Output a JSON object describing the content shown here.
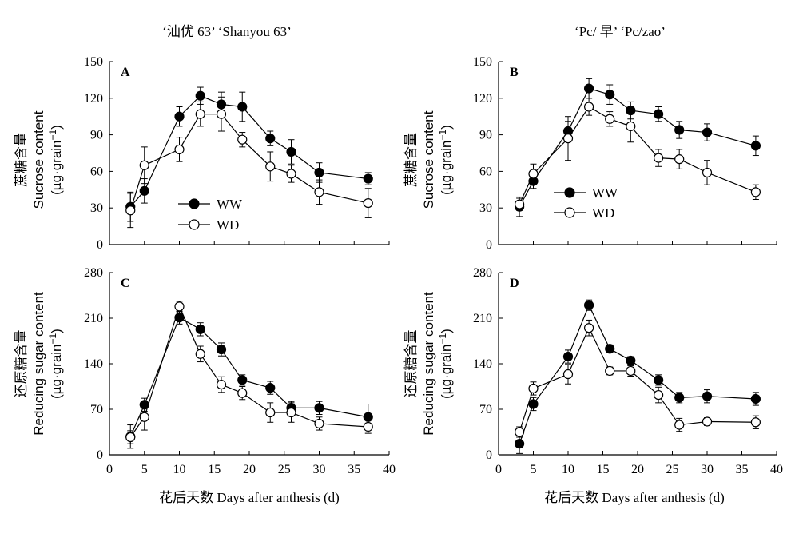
{
  "titles": {
    "left": "‘汕优 63’ ‘Shanyou 63’",
    "right": "‘Pc/ 早’ ‘Pc/zao’"
  },
  "xaxis": {
    "label": "花后天数 Days after anthesis (d)",
    "ticks": [
      "0",
      "5",
      "10",
      "15",
      "20",
      "25",
      "30",
      "35",
      "40"
    ]
  },
  "ylabels": {
    "sucrose": {
      "zh": "蔗糖含量",
      "en": "Sucrose content",
      "unit_base": "(µg·grain",
      "unit_sup": "−1",
      "unit_end": ")"
    },
    "reducing": {
      "zh": "还原糖含量",
      "en": "Reducing sugar content",
      "unit_base": "(µg·grain",
      "unit_sup": "−1",
      "unit_end": ")"
    }
  },
  "colors": {
    "axis": "#000000",
    "ww_fill": "#000000",
    "wd_fill": "#ffffff"
  },
  "chart_data": [
    {
      "panel": "A",
      "type": "line",
      "ylim": [
        0,
        150
      ],
      "yticks": [
        "0",
        "30",
        "60",
        "90",
        "120",
        "150"
      ],
      "x": [
        3,
        5,
        10,
        13,
        16,
        19,
        23,
        26,
        30,
        37
      ],
      "legend": [
        "WW",
        "WD"
      ],
      "series": [
        {
          "name": "WW",
          "values": [
            31,
            44,
            105,
            122,
            115,
            113,
            87,
            76,
            59,
            54
          ],
          "err": [
            12,
            10,
            8,
            7,
            10,
            12,
            6,
            10,
            8,
            5
          ]
        },
        {
          "name": "WD",
          "values": [
            28,
            65,
            78,
            107,
            107,
            86,
            64,
            58,
            43,
            34
          ],
          "err": [
            14,
            15,
            10,
            10,
            14,
            6,
            12,
            7,
            10,
            12
          ]
        }
      ]
    },
    {
      "panel": "B",
      "type": "line",
      "ylim": [
        0,
        150
      ],
      "yticks": [
        "0",
        "30",
        "60",
        "90",
        "120",
        "150"
      ],
      "x": [
        3,
        5,
        10,
        13,
        16,
        19,
        23,
        26,
        30,
        37
      ],
      "legend": [
        "WW",
        "WD"
      ],
      "series": [
        {
          "name": "WW",
          "values": [
            31,
            52,
            93,
            128,
            123,
            110,
            107,
            94,
            92,
            81
          ],
          "err": [
            8,
            6,
            8,
            8,
            8,
            7,
            6,
            7,
            7,
            8
          ]
        },
        {
          "name": "WD",
          "values": [
            33,
            58,
            87,
            113,
            103,
            97,
            71,
            70,
            59,
            43
          ],
          "err": [
            5,
            8,
            18,
            7,
            6,
            13,
            7,
            8,
            10,
            6
          ]
        }
      ]
    },
    {
      "panel": "C",
      "type": "line",
      "ylim": [
        0,
        280
      ],
      "yticks": [
        "0",
        "70",
        "140",
        "210",
        "280"
      ],
      "x": [
        3,
        5,
        10,
        13,
        16,
        19,
        23,
        26,
        30,
        37
      ],
      "series": [
        {
          "name": "WW",
          "values": [
            28,
            77,
            211,
            193,
            162,
            115,
            103,
            72,
            72,
            58
          ],
          "err": [
            18,
            10,
            10,
            10,
            10,
            8,
            10,
            10,
            10,
            20
          ]
        },
        {
          "name": "WD",
          "values": [
            27,
            58,
            228,
            155,
            108,
            95,
            65,
            65,
            48,
            43
          ],
          "err": [
            10,
            20,
            8,
            12,
            12,
            10,
            15,
            15,
            10,
            10
          ]
        }
      ]
    },
    {
      "panel": "D",
      "type": "line",
      "ylim": [
        0,
        280
      ],
      "yticks": [
        "0",
        "70",
        "140",
        "210",
        "280"
      ],
      "x": [
        3,
        5,
        10,
        13,
        16,
        19,
        23,
        26,
        30,
        37
      ],
      "series": [
        {
          "name": "WW",
          "values": [
            17,
            78,
            151,
            230,
            163,
            145,
            115,
            88,
            90,
            86
          ],
          "err": [
            15,
            10,
            10,
            8,
            6,
            6,
            8,
            8,
            10,
            10
          ]
        },
        {
          "name": "WD",
          "values": [
            35,
            102,
            124,
            195,
            129,
            129,
            92,
            46,
            51,
            50
          ],
          "err": [
            8,
            10,
            15,
            12,
            6,
            8,
            12,
            10,
            6,
            10
          ]
        }
      ]
    }
  ]
}
